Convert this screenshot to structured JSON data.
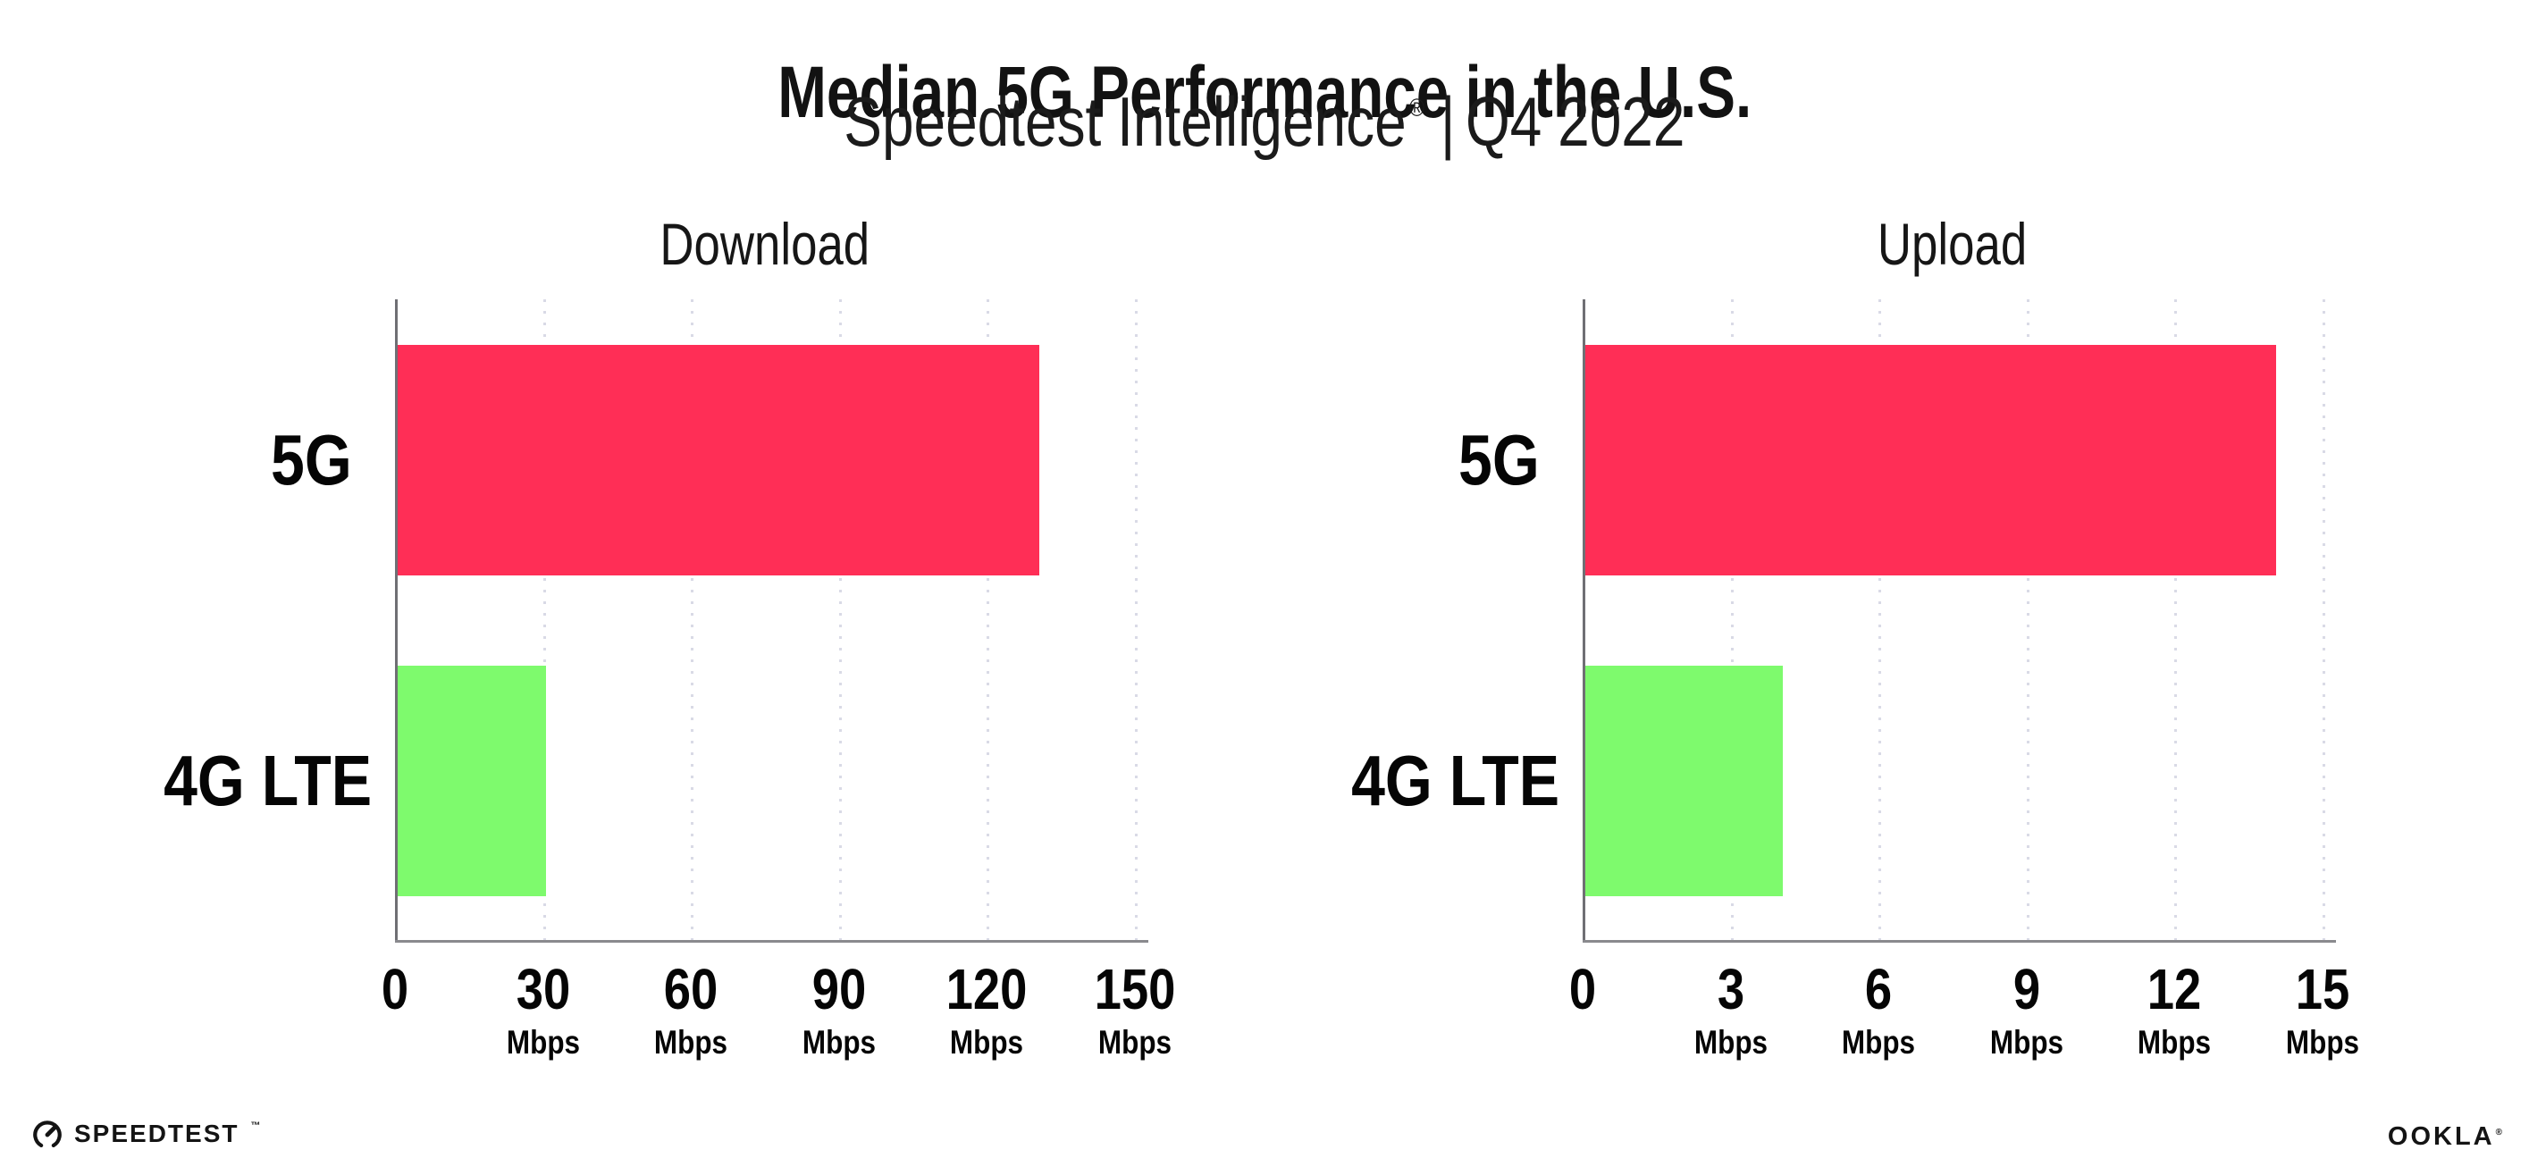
{
  "page": {
    "title": "Median 5G Performance in the U.S.",
    "subtitle": {
      "brand": "Speedtest Intelligence",
      "registered": "®",
      "separator": "|",
      "period": "Q4 2022"
    }
  },
  "colors": {
    "bar_5g": "#ff2e56",
    "bar_4g_lte": "#7efa6d",
    "axis": "#8a8a8e",
    "gridline": "#d9dae6",
    "text": "#050505"
  },
  "footer": {
    "speedtest_label": "SPEEDTEST",
    "speedtest_trademark": "™",
    "ookla_label": "OOKLA",
    "ookla_registered": "®"
  },
  "chart_data": [
    {
      "type": "bar",
      "orientation": "horizontal",
      "title": "Download",
      "categories": [
        "5G",
        "4G LTE"
      ],
      "values": [
        130,
        30
      ],
      "unit": "Mbps",
      "xlim": [
        0,
        150
      ],
      "xticks": [
        0,
        30,
        60,
        90,
        120,
        150
      ],
      "bar_colors": [
        "#ff2e56",
        "#7efa6d"
      ],
      "grid": "dotted-vertical",
      "legend": "none"
    },
    {
      "type": "bar",
      "orientation": "horizontal",
      "title": "Upload",
      "categories": [
        "5G",
        "4G LTE"
      ],
      "values": [
        14,
        4
      ],
      "unit": "Mbps",
      "xlim": [
        0,
        15
      ],
      "xticks": [
        0,
        3,
        6,
        9,
        12,
        15
      ],
      "bar_colors": [
        "#ff2e56",
        "#7efa6d"
      ],
      "grid": "dotted-vertical",
      "legend": "none"
    }
  ]
}
